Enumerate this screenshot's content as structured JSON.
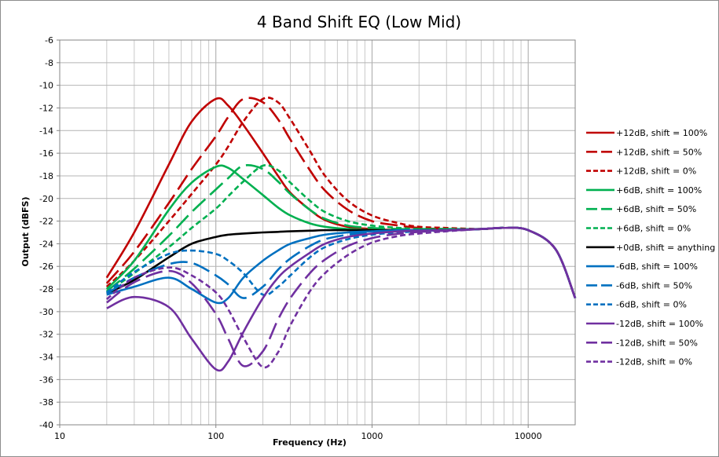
{
  "chart_data": {
    "type": "line",
    "title": "4 Band Shift EQ (Low Mid)",
    "xlabel": "Frequency (Hz)",
    "ylabel": "Output (dBFS)",
    "xscale": "log",
    "xlim": [
      10,
      20000
    ],
    "ylim": [
      -40,
      -6
    ],
    "ytick_step": 2,
    "xtick_labels": [
      "10",
      "100",
      "1000",
      "10000"
    ],
    "grid": true,
    "legend_position": "right",
    "x": [
      20,
      30,
      50,
      70,
      100,
      120,
      150,
      200,
      250,
      300,
      400,
      500,
      700,
      1000,
      1500,
      2000,
      3000,
      5000,
      7000,
      10000,
      15000,
      20000
    ],
    "series": [
      {
        "name": "+12dB, shift = 100%",
        "color": "#c00000",
        "dash": "solid",
        "values": [
          -27.0,
          -23.0,
          -17.0,
          -13.2,
          -11.2,
          -11.8,
          -13.5,
          -16.0,
          -18.0,
          -19.5,
          -21.0,
          -21.9,
          -22.5,
          -22.7,
          -22.8,
          -22.8,
          -22.8,
          -22.7,
          -22.6,
          -22.8,
          -24.5,
          -28.8
        ]
      },
      {
        "name": "+12dB, shift = 50%",
        "color": "#c00000",
        "dash": "long",
        "values": [
          -27.5,
          -24.7,
          -20.4,
          -17.4,
          -14.5,
          -12.8,
          -11.2,
          -11.5,
          -13.0,
          -14.8,
          -17.5,
          -19.3,
          -21.0,
          -22.0,
          -22.4,
          -22.6,
          -22.7,
          -22.7,
          -22.6,
          -22.8,
          -24.5,
          -28.8
        ]
      },
      {
        "name": "+12dB, shift = 0%",
        "color": "#c00000",
        "dash": "short",
        "values": [
          -27.8,
          -25.5,
          -22.0,
          -19.6,
          -17.0,
          -15.4,
          -13.2,
          -11.2,
          -11.5,
          -13.0,
          -15.8,
          -18.0,
          -20.2,
          -21.5,
          -22.2,
          -22.5,
          -22.6,
          -22.7,
          -22.6,
          -22.8,
          -24.5,
          -28.8
        ]
      },
      {
        "name": "+6dB, shift = 100%",
        "color": "#00b050",
        "dash": "solid",
        "values": [
          -28.0,
          -25.5,
          -21.0,
          -18.6,
          -17.2,
          -17.3,
          -18.3,
          -19.7,
          -20.8,
          -21.5,
          -22.2,
          -22.5,
          -22.7,
          -22.8,
          -22.8,
          -22.8,
          -22.8,
          -22.7,
          -22.6,
          -22.8,
          -24.5,
          -28.8
        ]
      },
      {
        "name": "+6dB, shift = 50%",
        "color": "#00b050",
        "dash": "long",
        "values": [
          -28.2,
          -26.2,
          -23.3,
          -21.2,
          -19.2,
          -18.2,
          -17.1,
          -17.4,
          -18.5,
          -19.6,
          -21.0,
          -21.8,
          -22.4,
          -22.6,
          -22.7,
          -22.7,
          -22.7,
          -22.7,
          -22.6,
          -22.8,
          -24.5,
          -28.8
        ]
      },
      {
        "name": "+6dB, shift = 0%",
        "color": "#00b050",
        "dash": "short",
        "values": [
          -28.3,
          -26.6,
          -24.3,
          -22.6,
          -20.9,
          -19.8,
          -18.5,
          -17.1,
          -17.5,
          -18.6,
          -20.2,
          -21.2,
          -22.0,
          -22.4,
          -22.6,
          -22.7,
          -22.7,
          -22.7,
          -22.6,
          -22.8,
          -24.5,
          -28.8
        ]
      },
      {
        "name": "+0dB, shift = anything",
        "color": "#000000",
        "dash": "solid",
        "values": [
          -28.4,
          -27.2,
          -25.2,
          -24.0,
          -23.4,
          -23.2,
          -23.1,
          -23.0,
          -22.95,
          -22.9,
          -22.85,
          -22.8,
          -22.8,
          -22.8,
          -22.8,
          -22.8,
          -22.8,
          -22.7,
          -22.6,
          -22.8,
          -24.5,
          -28.8
        ]
      },
      {
        "name": "-6dB, shift = 100%",
        "color": "#0070c0",
        "dash": "solid",
        "values": [
          -28.5,
          -27.8,
          -27.0,
          -28.0,
          -29.2,
          -28.8,
          -27.0,
          -25.5,
          -24.6,
          -24.0,
          -23.5,
          -23.2,
          -23.0,
          -22.9,
          -22.8,
          -22.8,
          -22.8,
          -22.7,
          -22.6,
          -22.8,
          -24.5,
          -28.8
        ]
      },
      {
        "name": "-6dB, shift = 50%",
        "color": "#0070c0",
        "dash": "long",
        "values": [
          -28.4,
          -27.0,
          -25.8,
          -25.7,
          -26.8,
          -27.6,
          -28.8,
          -27.8,
          -26.3,
          -25.3,
          -24.2,
          -23.6,
          -23.2,
          -23.0,
          -22.9,
          -22.85,
          -22.8,
          -22.7,
          -22.6,
          -22.8,
          -24.5,
          -28.8
        ]
      },
      {
        "name": "-6dB, shift = 0%",
        "color": "#0070c0",
        "dash": "short",
        "values": [
          -28.3,
          -26.5,
          -24.9,
          -24.6,
          -24.9,
          -25.5,
          -26.6,
          -28.5,
          -27.8,
          -26.8,
          -25.2,
          -24.3,
          -23.6,
          -23.2,
          -23.0,
          -22.9,
          -22.8,
          -22.7,
          -22.6,
          -22.8,
          -24.5,
          -28.8
        ]
      },
      {
        "name": "-12dB, shift = 100%",
        "color": "#7030a0",
        "dash": "solid",
        "values": [
          -29.7,
          -28.7,
          -29.6,
          -32.4,
          -35.1,
          -34.4,
          -31.8,
          -28.8,
          -27.0,
          -26.0,
          -24.8,
          -24.0,
          -23.4,
          -23.1,
          -22.9,
          -22.85,
          -22.8,
          -22.7,
          -22.6,
          -22.8,
          -24.5,
          -28.8
        ]
      },
      {
        "name": "-12dB, shift = 50%",
        "color": "#7030a0",
        "dash": "long",
        "values": [
          -29.2,
          -27.4,
          -26.4,
          -27.5,
          -30.2,
          -32.4,
          -34.8,
          -33.5,
          -30.7,
          -28.8,
          -26.6,
          -25.4,
          -24.2,
          -23.5,
          -23.1,
          -22.95,
          -22.85,
          -22.7,
          -22.6,
          -22.8,
          -24.5,
          -28.8
        ]
      },
      {
        "name": "-12dB, shift = 0%",
        "color": "#7030a0",
        "dash": "short",
        "values": [
          -28.9,
          -27.0,
          -26.1,
          -26.8,
          -28.3,
          -29.8,
          -32.3,
          -34.9,
          -33.6,
          -31.2,
          -28.2,
          -26.6,
          -25.0,
          -23.9,
          -23.3,
          -23.1,
          -22.9,
          -22.7,
          -22.6,
          -22.8,
          -24.5,
          -28.8
        ]
      }
    ]
  }
}
